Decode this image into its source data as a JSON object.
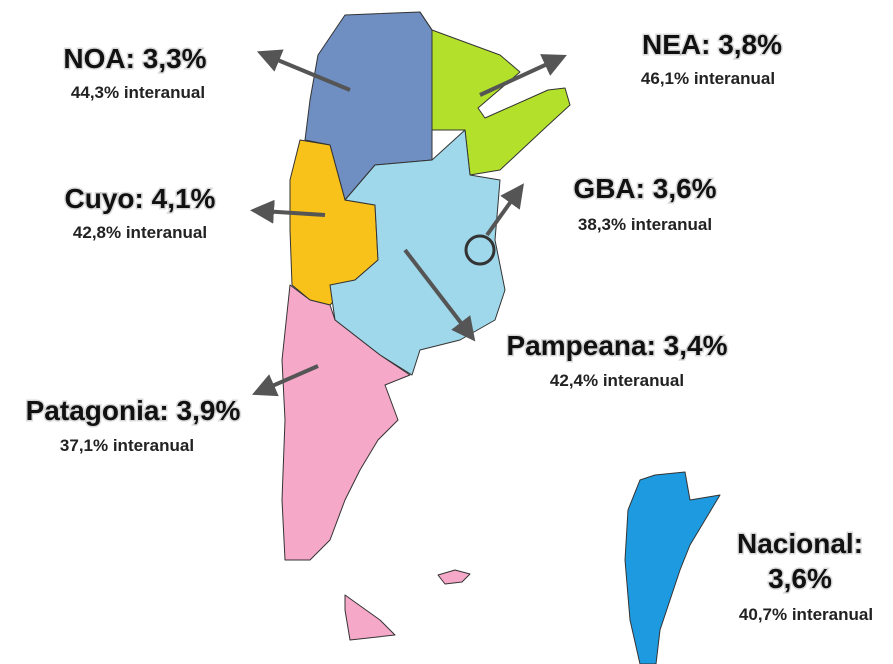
{
  "regions": {
    "noa": {
      "title": "NOA: 3,3%",
      "subtitle": "44,3% interanual"
    },
    "nea": {
      "title": "NEA: 3,8%",
      "subtitle": "46,1% interanual"
    },
    "cuyo": {
      "title": "Cuyo: 4,1%",
      "subtitle": "42,8% interanual"
    },
    "gba": {
      "title": "GBA: 3,6%",
      "subtitle": "38,3% interanual"
    },
    "pampeana": {
      "title": "Pampeana: 3,4%",
      "subtitle": "42,4% interanual"
    },
    "patagonia": {
      "title": "Patagonia: 3,9%",
      "subtitle": "37,1% interanual"
    },
    "nacional": {
      "title": "Nacional:",
      "value": "3,6%",
      "subtitle": "40,7% interanual"
    }
  }
}
